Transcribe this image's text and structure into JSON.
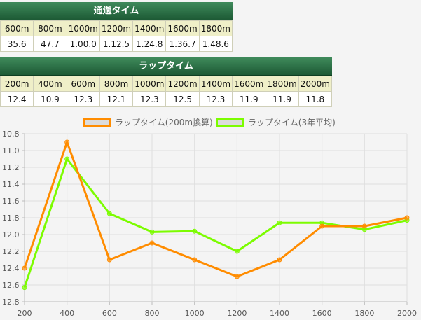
{
  "passing": {
    "title": "通過タイム",
    "headers": [
      "600m",
      "800m",
      "1000m",
      "1200m",
      "1400m",
      "1600m",
      "1800m"
    ],
    "values": [
      "35.6",
      "47.7",
      "1.00.0",
      "1.12.5",
      "1.24.8",
      "1.36.7",
      "1.48.6"
    ]
  },
  "lap": {
    "title": "ラップタイム",
    "headers": [
      "200m",
      "400m",
      "600m",
      "800m",
      "1000m",
      "1200m",
      "1400m",
      "1600m",
      "1800m",
      "2000m"
    ],
    "values": [
      "12.4",
      "10.9",
      "12.3",
      "12.1",
      "12.3",
      "12.5",
      "12.3",
      "11.9",
      "11.9",
      "11.8"
    ]
  },
  "chart_data": {
    "type": "line",
    "x": [
      200,
      400,
      600,
      800,
      1000,
      1200,
      1400,
      1600,
      1800,
      2000
    ],
    "x_ticks": [
      "200",
      "400",
      "600",
      "800",
      "1000",
      "1200",
      "1400",
      "1600",
      "1800",
      "2000"
    ],
    "y_ticks": [
      "10.8",
      "11.0",
      "11.2",
      "11.4",
      "11.6",
      "11.8",
      "12.0",
      "12.2",
      "12.4",
      "12.6",
      "12.8"
    ],
    "ylim": [
      10.8,
      12.8
    ],
    "y_inverted": true,
    "grid": true,
    "legend_position": "top",
    "series": [
      {
        "name": "ラップタイム(200m換算)",
        "color": "#ff8c00",
        "values": [
          12.4,
          10.9,
          12.3,
          12.1,
          12.3,
          12.5,
          12.3,
          11.9,
          11.9,
          11.8
        ]
      },
      {
        "name": "ラップタイム(3年平均)",
        "color": "#7cfc00",
        "values": [
          12.63,
          11.1,
          11.75,
          11.97,
          11.96,
          12.2,
          11.86,
          11.86,
          11.94,
          11.83
        ]
      }
    ]
  }
}
